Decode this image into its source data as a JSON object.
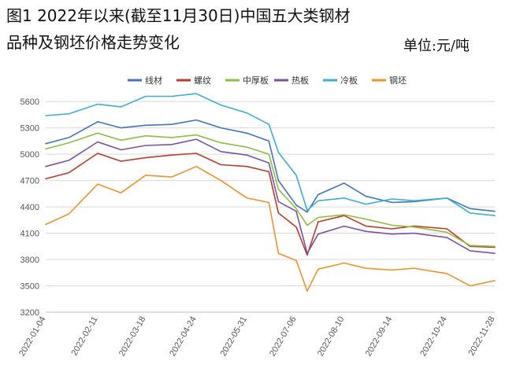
{
  "title_line1": "图1 2022年以来(截至11月30日)中国五大类钢材",
  "title_line2": "品种及钢坯价格走势变化",
  "unit": "单位:元/吨",
  "chart_data": {
    "type": "line",
    "y_ticks": [
      3200,
      3500,
      3800,
      4100,
      4400,
      4700,
      5000,
      5300,
      5600
    ],
    "ylim": [
      3200,
      5700
    ],
    "grid": true,
    "legend_position": "top",
    "x_labels": [
      "2022-01-04",
      "2022-02-11",
      "2022-03-18",
      "2022-04-24",
      "2022-05-31",
      "2022-07-06",
      "2022-08-10",
      "2022-09-14",
      "2022-10-24",
      "2022-11-28"
    ],
    "x": [
      "2022-01-04",
      "2022-01-21",
      "2022-02-11",
      "2022-02-28",
      "2022-03-18",
      "2022-04-06",
      "2022-04-24",
      "2022-05-12",
      "2022-05-31",
      "2022-06-16",
      "2022-06-23",
      "2022-07-06",
      "2022-07-14",
      "2022-07-22",
      "2022-08-10",
      "2022-08-26",
      "2022-09-14",
      "2022-09-30",
      "2022-10-24",
      "2022-11-10",
      "2022-11-28"
    ],
    "series": [
      {
        "name": "线材",
        "color": "#4472c4",
        "values": [
          5120,
          5190,
          5370,
          5300,
          5330,
          5340,
          5390,
          5300,
          5240,
          5150,
          4700,
          4420,
          4340,
          4540,
          4670,
          4520,
          4450,
          4460,
          4500,
          4380,
          4350
        ]
      },
      {
        "name": "螺纹",
        "color": "#c0392b",
        "values": [
          4720,
          4790,
          5010,
          4920,
          4960,
          4990,
          5010,
          4880,
          4860,
          4800,
          4330,
          4170,
          3850,
          4230,
          4300,
          4180,
          4150,
          4180,
          4150,
          3950,
          3940
        ]
      },
      {
        "name": "中厚板",
        "color": "#8fbf3c",
        "values": [
          5060,
          5130,
          5240,
          5160,
          5210,
          5190,
          5220,
          5130,
          5080,
          5000,
          4600,
          4380,
          4190,
          4280,
          4310,
          4260,
          4190,
          4170,
          4110,
          3960,
          3950
        ]
      },
      {
        "name": "热板",
        "color": "#7b52a3",
        "values": [
          4860,
          4930,
          5140,
          5050,
          5100,
          5110,
          5170,
          5030,
          4990,
          4900,
          4460,
          4350,
          3870,
          4090,
          4180,
          4120,
          4090,
          4100,
          4050,
          3900,
          3870
        ]
      },
      {
        "name": "冷板",
        "color": "#3bb0d0",
        "values": [
          5440,
          5460,
          5570,
          5540,
          5660,
          5660,
          5690,
          5560,
          5470,
          5340,
          5020,
          4760,
          4360,
          4470,
          4500,
          4430,
          4490,
          4470,
          4500,
          4330,
          4300
        ]
      },
      {
        "name": "钢坯",
        "color": "#f0932b",
        "values": [
          4200,
          4320,
          4660,
          4560,
          4760,
          4740,
          4860,
          4700,
          4500,
          4450,
          3870,
          3790,
          3440,
          3690,
          3760,
          3700,
          3680,
          3700,
          3640,
          3500,
          3560
        ]
      }
    ]
  }
}
